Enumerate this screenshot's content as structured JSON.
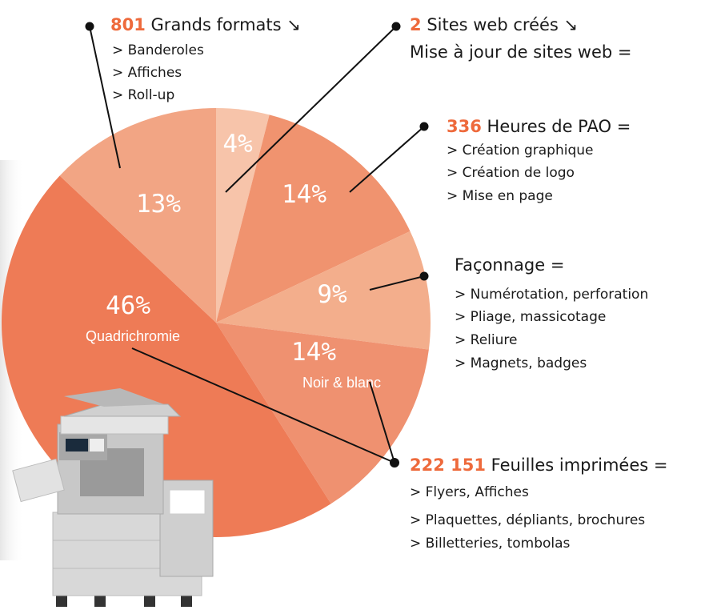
{
  "chart_data": {
    "type": "pie",
    "categories": [
      null,
      null,
      null,
      "Noir & blanc",
      "Quadrichromie",
      null
    ],
    "values": [
      4,
      14,
      9,
      14,
      46,
      13
    ],
    "value_labels": [
      "4%",
      "14%",
      "9%",
      "14%",
      "46%",
      "13%"
    ],
    "colors": [
      "#f7c4aa",
      "#f0936f",
      "#f3ae8c",
      "#ef9170",
      "#ee7b56",
      "#f2a584"
    ],
    "annotations": [
      {
        "number": "801",
        "text": "Grands formats ↘",
        "lines": [
          "> Banderoles",
          "> Affiches",
          "> Roll-up"
        ]
      },
      {
        "number": "2",
        "text": "Sites web créés ↘",
        "lines": [
          "Mise à jour de sites web ="
        ]
      },
      {
        "number": "336",
        "text": "Heures de PAO =",
        "lines": [
          "> Création graphique",
          "> Création de logo",
          "> Mise en page"
        ]
      },
      {
        "text": "Façonnage =",
        "lines": [
          "> Numérotation, perforation",
          "> Pliage, massicotage",
          "> Reliure",
          "> Magnets, badges"
        ]
      },
      {
        "number": "222 151",
        "text": "Feuilles imprimées =",
        "lines": [
          "> Flyers, Affiches",
          "> Plaquettes, dépliants, brochures",
          "> Billetteries, tombolas"
        ]
      }
    ]
  }
}
